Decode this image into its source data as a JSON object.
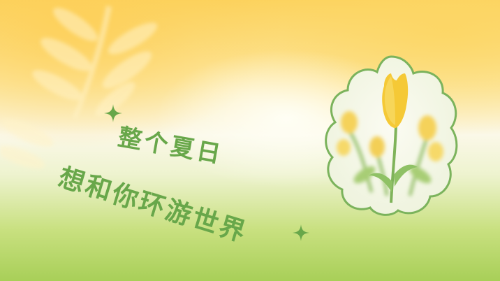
{
  "slogan": {
    "line1": "整个夏日",
    "line2": "想和你环游世界"
  },
  "colors": {
    "text_green": "#68a74a",
    "frame_green": "#7bb35c",
    "sun_yellow": "#fcd25d",
    "grass_green": "#a8cf58",
    "tulip_yellow": "#f5c936"
  },
  "icons": {
    "sparkle": "four-point-star",
    "leaf": "fern-leaf",
    "flower": "tulip"
  }
}
